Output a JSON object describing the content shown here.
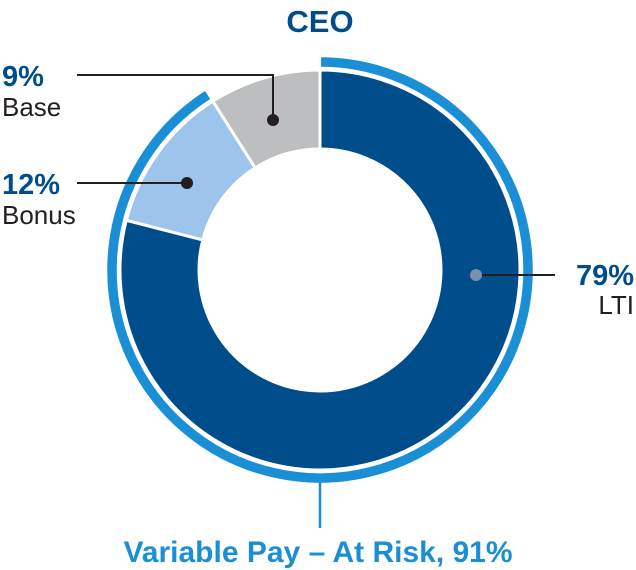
{
  "chart_data": {
    "type": "pie",
    "title": "CEO",
    "slices": [
      {
        "label": "Base",
        "value": 9,
        "value_text": "9%",
        "color": "#bcbec0"
      },
      {
        "label": "Bonus",
        "value": 12,
        "value_text": "12%",
        "color": "#9dc4ea"
      },
      {
        "label": "LTI",
        "value": 79,
        "value_text": "79%",
        "color": "#004d8c"
      }
    ],
    "at_risk": {
      "label": "Variable Pay – At Risk, 91%",
      "value": 91,
      "color": "#1a8fd6"
    }
  },
  "colors": {
    "title": "#004d8c",
    "percent": "#004d8c",
    "label": "#231f20",
    "leader": "#231f20",
    "lti_leader": "#7b8fae",
    "accent": "#1a8fd6"
  }
}
